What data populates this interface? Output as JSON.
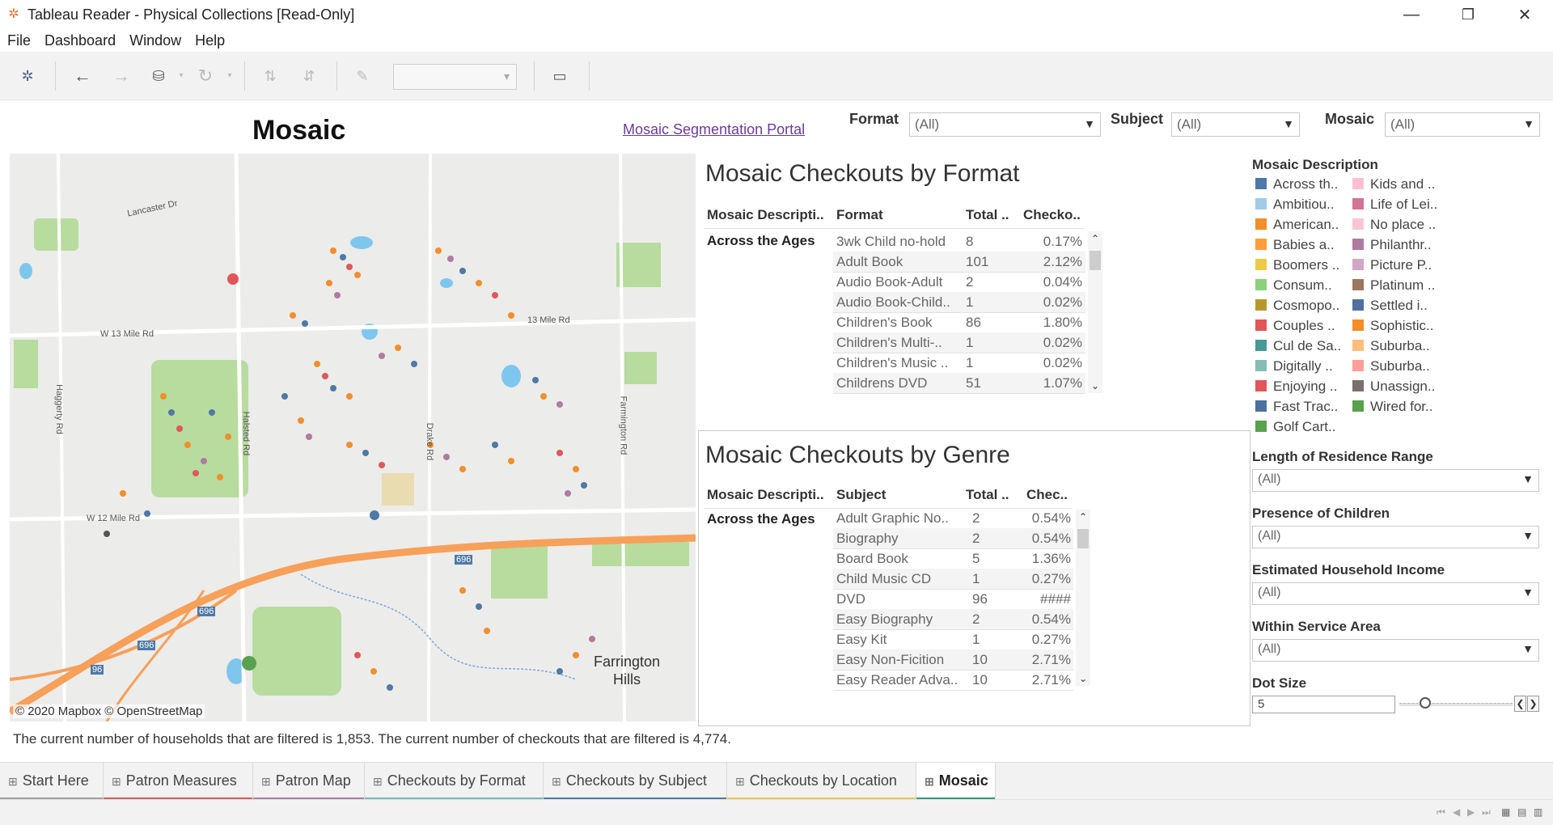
{
  "window": {
    "title": "Tableau Reader - Physical Collections [Read-Only]",
    "controls": {
      "minimize": "—",
      "restore": "❐",
      "close": "✕"
    }
  },
  "menu": [
    "File",
    "Dashboard",
    "Window",
    "Help"
  ],
  "toolbar": {
    "icons": [
      "tableau-logo-icon",
      "back-arrow-icon",
      "forward-arrow-icon",
      "save-data-icon",
      "refresh-icon",
      "sort-ascending-icon",
      "sort-descending-icon",
      "pin-icon",
      "presentation-mode-icon"
    ],
    "combo_value": ""
  },
  "dashboard": {
    "title": "Mosaic",
    "portal_link": "Mosaic Segmentation Portal"
  },
  "filters": {
    "format": {
      "label": "Format",
      "value": "(All)"
    },
    "subject": {
      "label": "Subject",
      "value": "(All)"
    },
    "mosaic": {
      "label": "Mosaic",
      "value": "(All)"
    }
  },
  "map": {
    "attribution": "© 2020 Mapbox © OpenStreetMap",
    "city_line1": "Farrington",
    "city_line2": "Hills",
    "roads": [
      "Lancaster Dr",
      "W 13 Mile Rd",
      "W 12 Mile Rd",
      "Haggerty Rd",
      "Halsted Rd",
      "Drake Rd",
      "Farmington Rd",
      "13 Mile Rd"
    ],
    "shields": [
      "696",
      "696",
      "696",
      "96"
    ]
  },
  "format_table": {
    "title": "Mosaic Checkouts by Format",
    "headers": [
      "Mosaic Descripti..",
      "Format",
      "Total ..",
      "Checko.."
    ],
    "group": "Across the Ages",
    "rows": [
      [
        "3wk Child no-hold",
        "8",
        "0.17%"
      ],
      [
        "Adult Book",
        "101",
        "2.12%"
      ],
      [
        "Audio Book-Adult",
        "2",
        "0.04%"
      ],
      [
        "Audio Book-Child..",
        "1",
        "0.02%"
      ],
      [
        "Children's Book",
        "86",
        "1.80%"
      ],
      [
        "Children's Multi-..",
        "1",
        "0.02%"
      ],
      [
        "Children's Music ..",
        "1",
        "0.02%"
      ],
      [
        "Childrens DVD",
        "51",
        "1.07%"
      ]
    ]
  },
  "genre_table": {
    "title": "Mosaic Checkouts by Genre",
    "headers": [
      "Mosaic Descripti..",
      "Subject",
      "Total ..",
      "Chec.."
    ],
    "group": "Across the Ages",
    "rows": [
      [
        "Adult Graphic No..",
        "2",
        "0.54%"
      ],
      [
        "Biography",
        "2",
        "0.54%"
      ],
      [
        "Board Book",
        "5",
        "1.36%"
      ],
      [
        "Child Music CD",
        "1",
        "0.27%"
      ],
      [
        "DVD",
        "96",
        "####"
      ],
      [
        "Easy Biography",
        "2",
        "0.54%"
      ],
      [
        "Easy Kit",
        "1",
        "0.27%"
      ],
      [
        "Easy Non-Ficition",
        "10",
        "2.71%"
      ],
      [
        "Easy Reader Adva..",
        "10",
        "2.71%"
      ]
    ]
  },
  "legend": {
    "title": "Mosaic Description",
    "col1": [
      {
        "label": "Across th..",
        "color": "#4e79a7"
      },
      {
        "label": "Ambitiou..",
        "color": "#a0cbe8"
      },
      {
        "label": "American..",
        "color": "#f28e2b"
      },
      {
        "label": "Babies a..",
        "color": "#ff9d3a"
      },
      {
        "label": "Boomers ..",
        "color": "#edc948"
      },
      {
        "label": "Consum..",
        "color": "#8cd17d"
      },
      {
        "label": "Cosmopo..",
        "color": "#b6992d"
      },
      {
        "label": "Couples ..",
        "color": "#e15759"
      },
      {
        "label": "Cul de Sa..",
        "color": "#499894"
      },
      {
        "label": "Digitally ..",
        "color": "#86bcb6"
      },
      {
        "label": "Enjoying ..",
        "color": "#e15759"
      },
      {
        "label": "Fast Trac..",
        "color": "#4e6fa0"
      },
      {
        "label": "Golf Cart..",
        "color": "#59a14f"
      }
    ],
    "col2": [
      {
        "label": "Kids and ..",
        "color": "#fabfd2"
      },
      {
        "label": "Life of Lei..",
        "color": "#d37295"
      },
      {
        "label": "No place ..",
        "color": "#fbc4d6"
      },
      {
        "label": "Philanthr..",
        "color": "#b07aa1"
      },
      {
        "label": "Picture P..",
        "color": "#d4a6c8"
      },
      {
        "label": "Platinum ..",
        "color": "#9d7660"
      },
      {
        "label": "Settled i..",
        "color": "#4e6fa0"
      },
      {
        "label": "Sophistic..",
        "color": "#f28e2b"
      },
      {
        "label": "Suburba..",
        "color": "#ffbe7d"
      },
      {
        "label": "Suburba..",
        "color": "#ff9d9a"
      },
      {
        "label": "Unassign..",
        "color": "#79706e"
      },
      {
        "label": "Wired for..",
        "color": "#59a14f"
      }
    ]
  },
  "right_filters": [
    {
      "label": "Length of Residence Range",
      "value": "(All)"
    },
    {
      "label": "Presence of Children",
      "value": "(All)"
    },
    {
      "label": "Estimated Household Income",
      "value": "(All)"
    },
    {
      "label": "Within Service Area",
      "value": "(All)"
    }
  ],
  "dot_size": {
    "label": "Dot Size",
    "value": "5"
  },
  "footer": "The current number of households that are filtered is 1,853. The current number of checkouts that are filtered is 4,774.",
  "tabs": [
    {
      "label": "Start Here",
      "color": "#9e9e9e"
    },
    {
      "label": "Patron Measures",
      "color": "#e15759"
    },
    {
      "label": "Patron Map",
      "color": "#b07aa1"
    },
    {
      "label": "Checkouts by Format",
      "color": "#76b7b2"
    },
    {
      "label": "Checkouts by Subject",
      "color": "#4e79a7"
    },
    {
      "label": "Checkouts by Location",
      "color": "#edc948"
    },
    {
      "label": "Mosaic",
      "color": "#2e9e7a"
    }
  ]
}
